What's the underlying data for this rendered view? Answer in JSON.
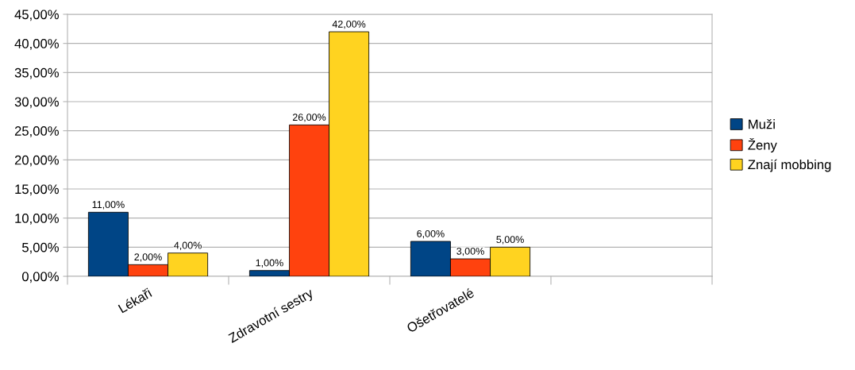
{
  "chart_data": {
    "type": "bar",
    "categories": [
      "Lékaři",
      "Zdravotní sestry",
      "Ošetřovatelé",
      null
    ],
    "series": [
      {
        "name": "Muži",
        "color": "#004586",
        "values": [
          11,
          1,
          6,
          null
        ],
        "value_labels": [
          "11,00%",
          "1,00%",
          "6,00%",
          null
        ]
      },
      {
        "name": "Ženy",
        "color": "#ff420e",
        "values": [
          2,
          26,
          3,
          null
        ],
        "value_labels": [
          "2,00%",
          "26,00%",
          "3,00%",
          null
        ]
      },
      {
        "name": "Znají mobbing",
        "color": "#ffd320",
        "values": [
          4,
          42,
          5,
          null
        ],
        "value_labels": [
          "4,00%",
          "42,00%",
          "5,00%",
          null
        ]
      }
    ],
    "ylim": [
      0,
      45
    ],
    "yticks": [
      {
        "value": 0,
        "label": "0,00%"
      },
      {
        "value": 5,
        "label": "5,00%"
      },
      {
        "value": 10,
        "label": "10,00%"
      },
      {
        "value": 15,
        "label": "15,00%"
      },
      {
        "value": 20,
        "label": "20,00%"
      },
      {
        "value": 25,
        "label": "25,00%"
      },
      {
        "value": 30,
        "label": "30,00%"
      },
      {
        "value": 35,
        "label": "35,00%"
      },
      {
        "value": 40,
        "label": "40,00%"
      },
      {
        "value": 45,
        "label": "45,00%"
      }
    ],
    "grid": "y",
    "legend": "right"
  }
}
